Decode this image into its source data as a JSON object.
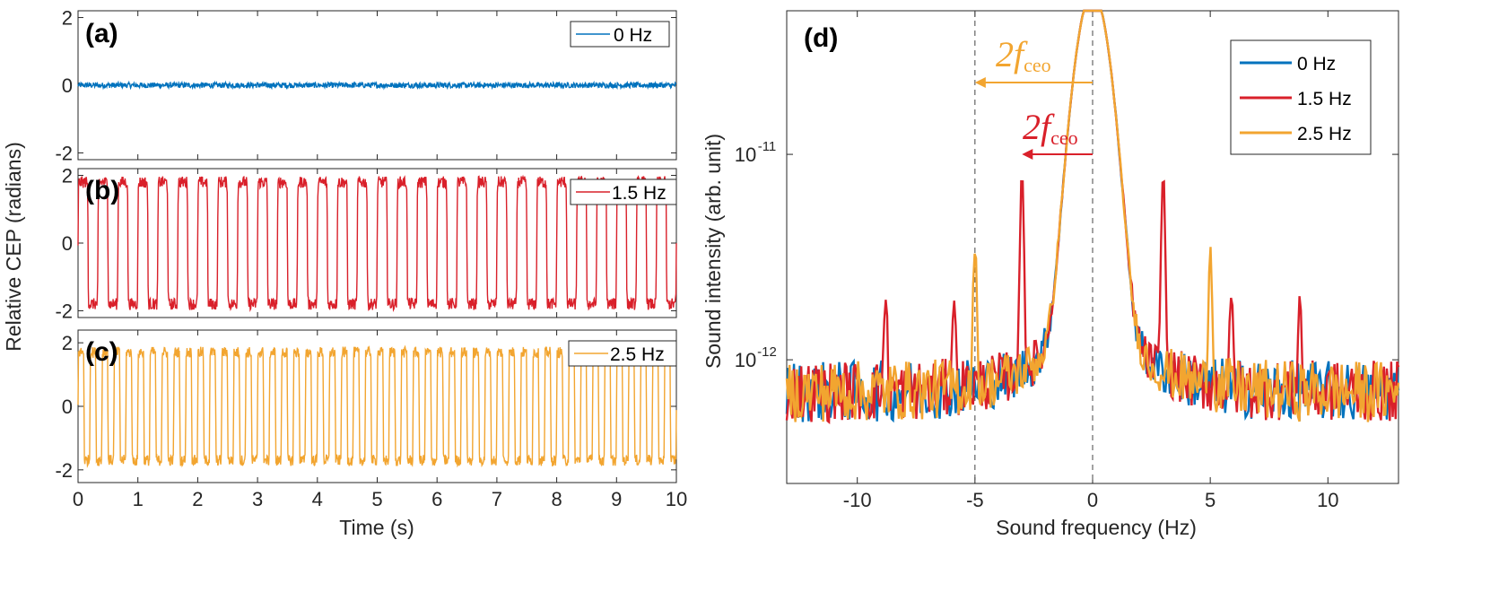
{
  "chart_data": [
    {
      "panel": "(a)",
      "type": "line",
      "xlim": [
        0,
        10
      ],
      "ylim": [
        -2.2,
        2.2
      ],
      "yticks": [
        "-2",
        "0",
        "2"
      ],
      "series": [
        {
          "name": "0 Hz",
          "color": "#0072BD",
          "amplitude": 0.08,
          "freq_hz": 0
        }
      ]
    },
    {
      "panel": "(b)",
      "type": "line",
      "xlim": [
        0,
        10
      ],
      "ylim": [
        -2.2,
        2.2
      ],
      "yticks": [
        "-2",
        "0",
        "2"
      ],
      "series": [
        {
          "name": "1.5 Hz",
          "color": "#D9202A",
          "amplitude": 1.8,
          "freq_hz": 1.5
        }
      ]
    },
    {
      "panel": "(c)",
      "type": "line",
      "xlim": [
        0,
        10
      ],
      "ylim": [
        -2.4,
        2.4
      ],
      "yticks": [
        "-2",
        "0",
        "2"
      ],
      "xticks": [
        "0",
        "1",
        "2",
        "3",
        "4",
        "5",
        "6",
        "7",
        "8",
        "9",
        "10"
      ],
      "series": [
        {
          "name": "2.5 Hz",
          "color": "#F2A530",
          "amplitude": 1.7,
          "freq_hz": 2.5
        }
      ]
    },
    {
      "panel": "(d)",
      "type": "line",
      "yscale": "log",
      "xlim": [
        -13,
        13
      ],
      "ylim": [
        2.5e-13,
        5e-11
      ],
      "xticks": [
        "-10",
        "-5",
        "0",
        "5",
        "10"
      ],
      "yticks": [
        {
          "exp": "-11",
          "value": 1e-11
        },
        {
          "exp": "-12",
          "value": 1e-12
        }
      ],
      "xlabel": "Sound frequency (Hz)",
      "ylabel": "Sound intensity (arb. unit)",
      "baseline": 7e-13,
      "series": [
        {
          "name": "0 Hz",
          "color": "#0072BD",
          "peaks": []
        },
        {
          "name": "1.5 Hz",
          "color": "#D9202A",
          "peaks": [
            {
              "x": -3,
              "y": 8e-12
            },
            {
              "x": 3,
              "y": 8e-12
            },
            {
              "x": -8.8,
              "y": 2e-12
            },
            {
              "x": 8.8,
              "y": 2e-12
            },
            {
              "x": -5.9,
              "y": 1.9e-12
            },
            {
              "x": 5.9,
              "y": 1.9e-12
            }
          ]
        },
        {
          "name": "2.5 Hz",
          "color": "#F2A530",
          "peaks": [
            {
              "x": -5,
              "y": 3.5e-12
            },
            {
              "x": 5,
              "y": 3.5e-12
            }
          ]
        }
      ],
      "annotations": [
        {
          "text": "2f",
          "sub": "ceo",
          "color": "#F2A530",
          "from_x": 0,
          "to_x": -5
        },
        {
          "text": "2f",
          "sub": "ceo",
          "color": "#D9202A",
          "from_x": 0,
          "to_x": -3
        }
      ]
    }
  ],
  "labels": {
    "left_ylabel": "Relative CEP (radians)",
    "left_xlabel": "Time (s)",
    "tick_base": "10"
  }
}
